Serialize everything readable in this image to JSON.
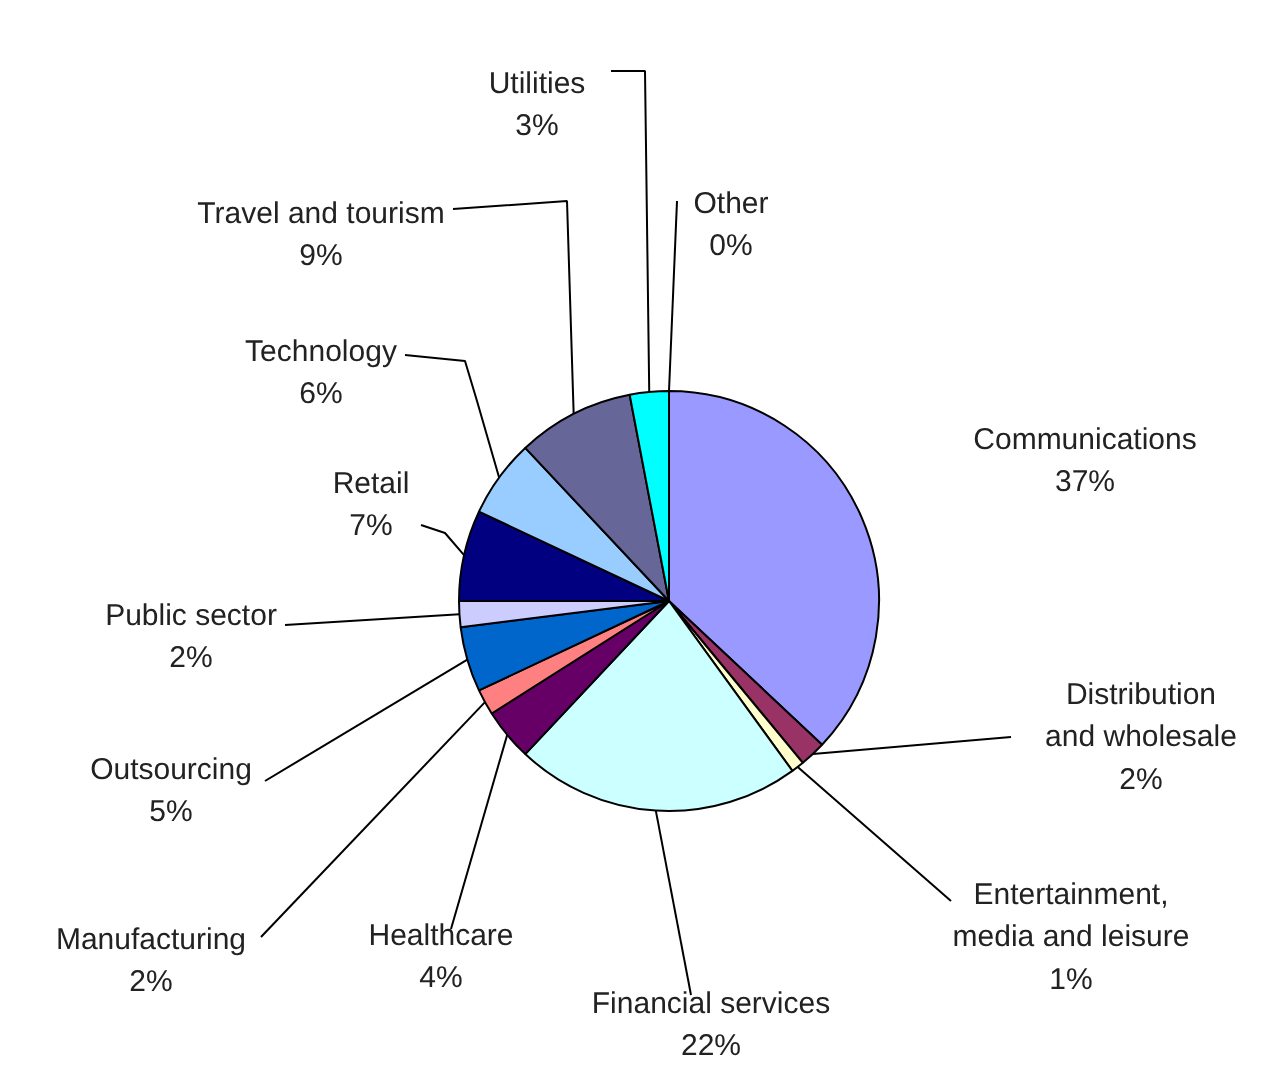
{
  "chart_data": {
    "type": "pie",
    "categories": [
      "Communications",
      "Distribution and wholesale",
      "Entertainment, media and leisure",
      "Financial services",
      "Healthcare",
      "Manufacturing",
      "Outsourcing",
      "Public sector",
      "Retail",
      "Technology",
      "Travel and tourism",
      "Utilities",
      "Other"
    ],
    "values": [
      37,
      2,
      1,
      22,
      4,
      2,
      5,
      2,
      7,
      6,
      9,
      3,
      0
    ],
    "colors": [
      "#9999ff",
      "#993366",
      "#ffffcc",
      "#ccffff",
      "#660066",
      "#ff8080",
      "#0066cc",
      "#ccccff",
      "#000080",
      "#99ccff",
      "#666699",
      "#00ffff",
      "#800080"
    ],
    "value_labels": [
      "37%",
      "2%",
      "1%",
      "22%",
      "4%",
      "2%",
      "5%",
      "2%",
      "7%",
      "6%",
      "9%",
      "3%",
      "0%"
    ]
  }
}
